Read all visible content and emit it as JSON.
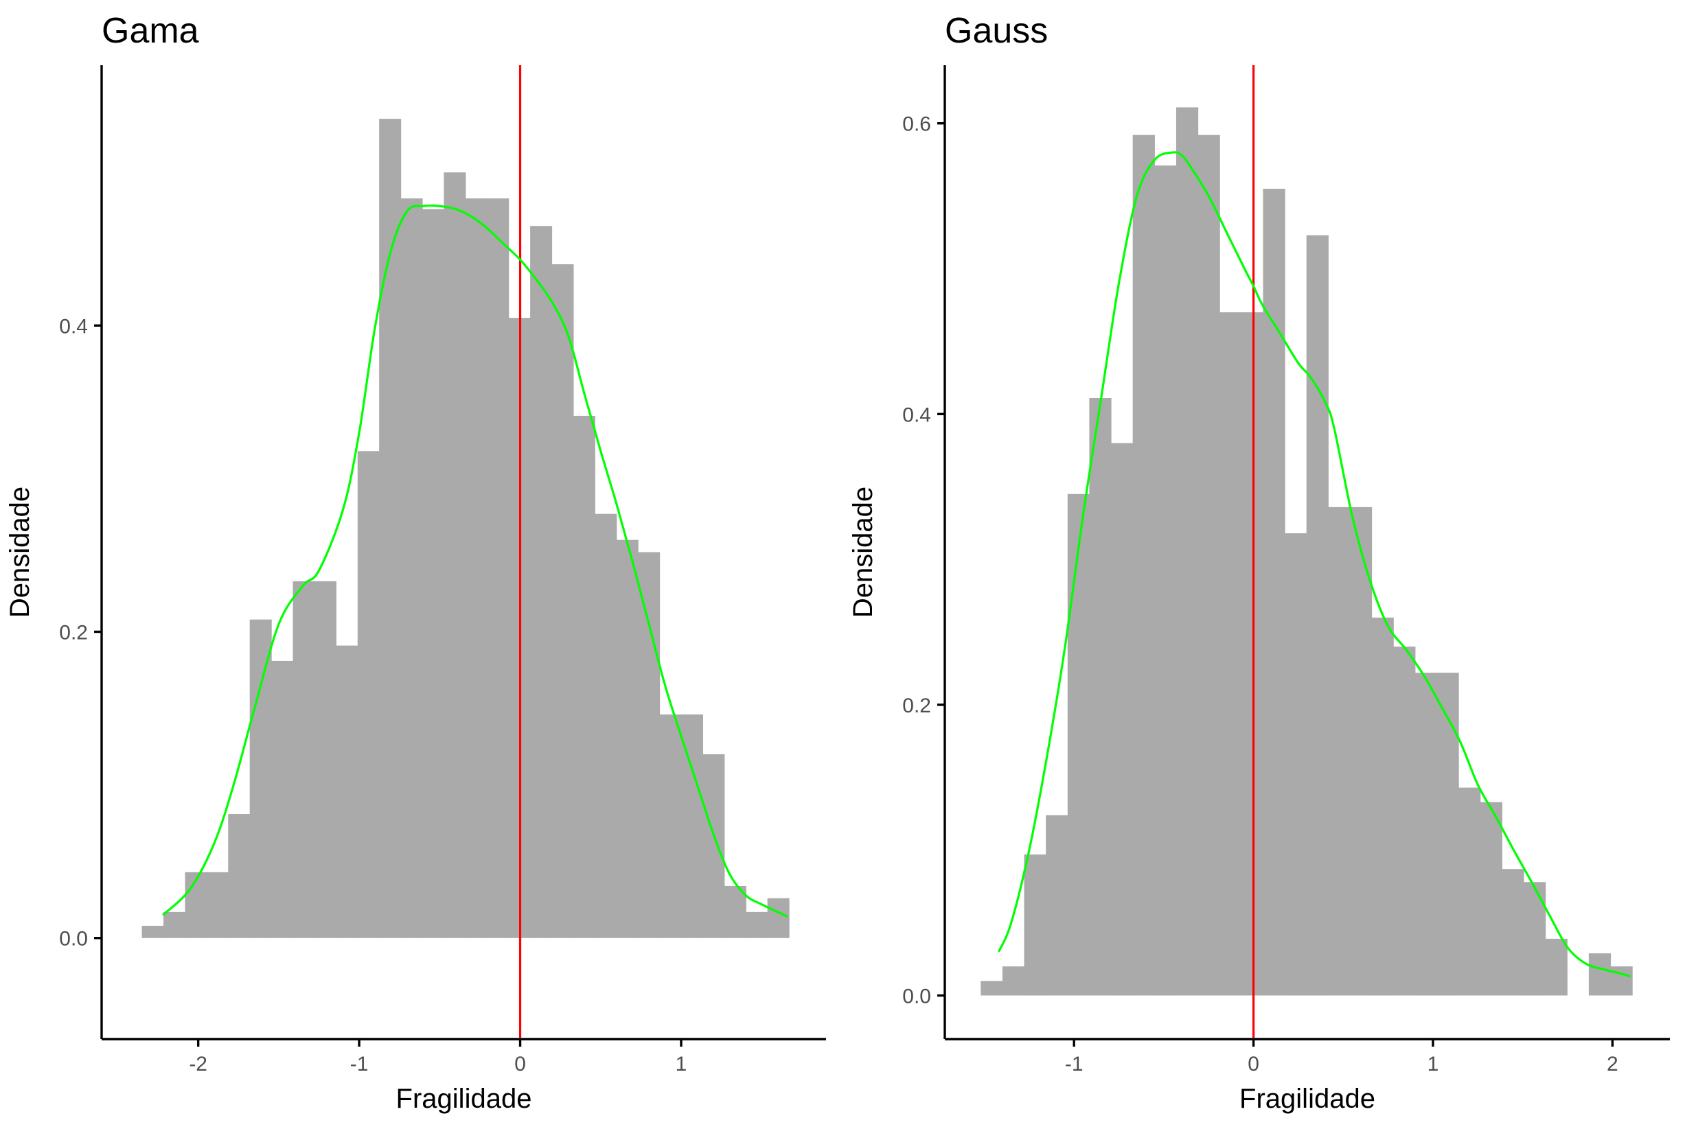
{
  "colors": {
    "histogram_fill": "#aaaaaa",
    "density_line": "#00ff00",
    "reference_line": "#ff0000",
    "axis": "#000000",
    "tick_label": "#4d4d4d"
  },
  "chart_data": [
    {
      "type": "histogram",
      "title": "Gama",
      "xlabel": "Fragilidade",
      "ylabel": "Densidade",
      "xlim": [
        -2.6,
        1.9
      ],
      "ylim": [
        -0.066,
        0.57
      ],
      "xticks": [
        -2,
        -1,
        0,
        1
      ],
      "xtick_labels": [
        "-2",
        "-1",
        "0",
        "1"
      ],
      "yticks": [
        0.0,
        0.2,
        0.4
      ],
      "ytick_labels": [
        "0.0",
        "0.2",
        "0.4"
      ],
      "bin_width": 0.134,
      "bin_start": -2.35,
      "bin_heights": [
        0.008,
        0.017,
        0.043,
        0.043,
        0.081,
        0.208,
        0.181,
        0.233,
        0.233,
        0.191,
        0.318,
        0.535,
        0.483,
        0.476,
        0.5,
        0.483,
        0.483,
        0.405,
        0.465,
        0.44,
        0.341,
        0.277,
        0.26,
        0.252,
        0.146,
        0.146,
        0.12,
        0.034,
        0.017,
        0.026
      ],
      "reference_line_x": 0,
      "density_curve": {
        "x": [
          -2.22,
          -2.05,
          -1.9,
          -1.78,
          -1.65,
          -1.5,
          -1.35,
          -1.25,
          -1.1,
          -1.0,
          -0.9,
          -0.8,
          -0.7,
          -0.6,
          -0.5,
          -0.4,
          -0.3,
          -0.2,
          -0.1,
          0.0,
          0.1,
          0.2,
          0.3,
          0.4,
          0.5,
          0.6,
          0.7,
          0.8,
          0.9,
          1.0,
          1.1,
          1.2,
          1.3,
          1.4,
          1.5,
          1.6,
          1.66
        ],
        "y": [
          0.015,
          0.032,
          0.062,
          0.1,
          0.15,
          0.205,
          0.23,
          0.24,
          0.28,
          0.33,
          0.4,
          0.45,
          0.475,
          0.478,
          0.478,
          0.476,
          0.471,
          0.463,
          0.453,
          0.443,
          0.43,
          0.415,
          0.393,
          0.355,
          0.318,
          0.283,
          0.245,
          0.205,
          0.165,
          0.132,
          0.1,
          0.068,
          0.042,
          0.028,
          0.022,
          0.017,
          0.014
        ]
      }
    },
    {
      "type": "histogram",
      "title": "Gauss",
      "xlabel": "Fragilidade",
      "ylabel": "Densidade",
      "xlim": [
        -1.72,
        2.32
      ],
      "ylim": [
        -0.03,
        0.64
      ],
      "xticks": [
        -1,
        0,
        1,
        2
      ],
      "xtick_labels": [
        "-1",
        "0",
        "1",
        "2"
      ],
      "yticks": [
        0.0,
        0.2,
        0.4,
        0.6
      ],
      "ytick_labels": [
        "0.0",
        "0.2",
        "0.4",
        "0.6"
      ],
      "bin_width": 0.121,
      "bin_start": -1.52,
      "bin_heights": [
        0.01,
        0.02,
        0.097,
        0.124,
        0.345,
        0.411,
        0.38,
        0.592,
        0.571,
        0.611,
        0.592,
        0.47,
        0.47,
        0.555,
        0.318,
        0.523,
        0.336,
        0.336,
        0.26,
        0.24,
        0.222,
        0.222,
        0.143,
        0.133,
        0.087,
        0.078,
        0.039,
        0.0,
        0.029,
        0.02
      ],
      "reference_line_x": 0,
      "density_curve": {
        "x": [
          -1.42,
          -1.35,
          -1.25,
          -1.15,
          -1.05,
          -0.95,
          -0.85,
          -0.75,
          -0.65,
          -0.55,
          -0.45,
          -0.4,
          -0.35,
          -0.25,
          -0.15,
          -0.05,
          0.0,
          0.05,
          0.15,
          0.25,
          0.32,
          0.4,
          0.45,
          0.55,
          0.65,
          0.75,
          0.85,
          0.95,
          1.05,
          1.15,
          1.25,
          1.35,
          1.45,
          1.55,
          1.65,
          1.75,
          1.85,
          1.95,
          2.05,
          2.1
        ],
        "y": [
          0.03,
          0.05,
          0.1,
          0.165,
          0.24,
          0.33,
          0.41,
          0.49,
          0.55,
          0.575,
          0.58,
          0.578,
          0.57,
          0.55,
          0.525,
          0.5,
          0.488,
          0.475,
          0.455,
          0.435,
          0.425,
          0.408,
          0.39,
          0.33,
          0.285,
          0.254,
          0.238,
          0.22,
          0.198,
          0.175,
          0.145,
          0.123,
          0.1,
          0.078,
          0.055,
          0.033,
          0.022,
          0.018,
          0.015,
          0.013
        ]
      }
    }
  ]
}
